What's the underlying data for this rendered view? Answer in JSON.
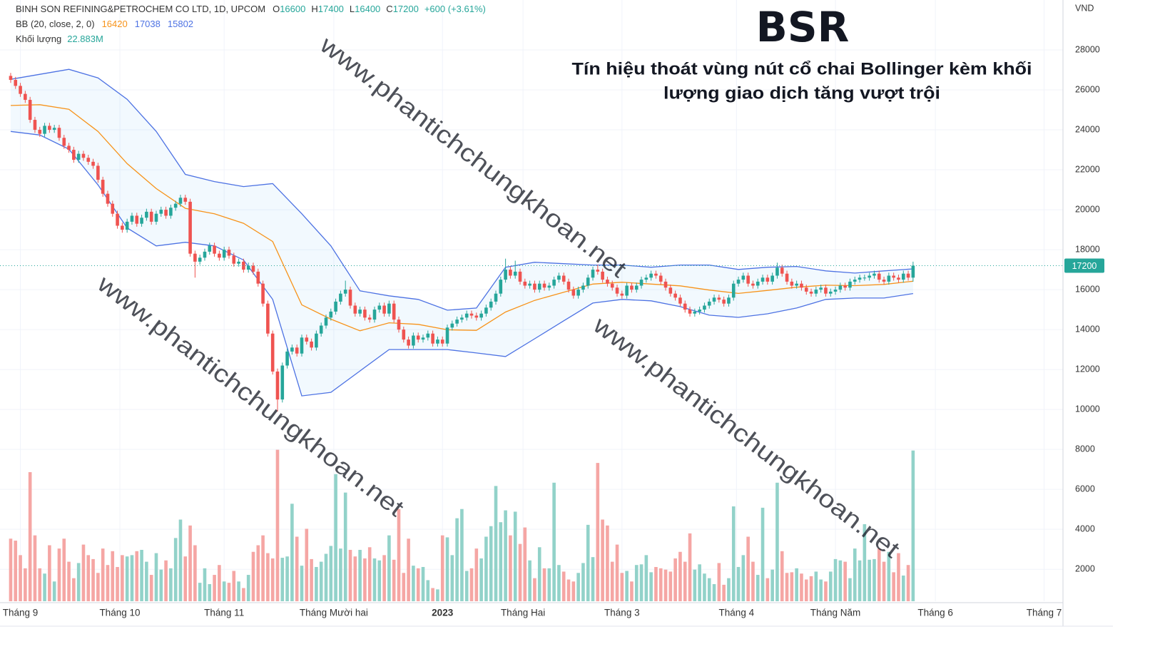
{
  "chart_data": {
    "type": "candlestick",
    "legend": {
      "symbol": "BINH SON REFINING&PETROCHEM CO LTD, 1D, UPCOM",
      "ohlc_prefix": [
        "O",
        "H",
        "L",
        "C"
      ],
      "change": "+600 (+3.61%)",
      "bb_label": "BB (20, close, 2, 0)",
      "volume_label": "Khối lượng",
      "volume_readout": "22.883M"
    },
    "title": "BSR",
    "annotation": [
      "Tín hiệu thoát vùng nút cổ chai Bollinger kèm khối",
      "lượng giao dịch tăng vượt trội"
    ],
    "watermark": "www.phantichchungkhoan.net",
    "currency": "VND",
    "colors": {
      "up": "#26a69a",
      "down": "#ef5350",
      "volume_up": "#92d2c9",
      "volume_down": "#f5a6a4",
      "title": "#66c34a",
      "annotation": "#e8302a",
      "watermark": "#ef8f8a"
    },
    "grid": true,
    "xlim": [
      -2.2,
      216.9
    ],
    "xticks": [
      {
        "value": 2,
        "label": "Tháng 9"
      },
      {
        "value": 22.5,
        "label": "Tháng 10"
      },
      {
        "value": 44,
        "label": "Tháng 11"
      },
      {
        "value": 66.6,
        "label": "Tháng Mười hai"
      },
      {
        "value": 89,
        "label": "2023",
        "bold": true
      },
      {
        "value": 105.6,
        "label": "Tháng Hai"
      },
      {
        "value": 126,
        "label": "Tháng 3"
      },
      {
        "value": 149.6,
        "label": "Tháng 4"
      },
      {
        "value": 170,
        "label": "Tháng Năm"
      },
      {
        "value": 190.6,
        "label": "Tháng 6"
      },
      {
        "value": 213,
        "label": "Tháng 7"
      }
    ],
    "ylim": [
      400,
      30500
    ],
    "yticks": [
      2000,
      4000,
      6000,
      8000,
      10000,
      12000,
      14000,
      16000,
      18000,
      20000,
      22000,
      24000,
      26000,
      28000
    ],
    "y2lim": [
      0,
      23.5
    ],
    "open": [
      26700,
      26500,
      26200,
      25800,
      25500,
      24500,
      24000,
      23800,
      24200,
      24000,
      24100,
      23600,
      23200,
      23000,
      22500,
      22800,
      22600,
      22400,
      22200,
      21500,
      20800,
      20300,
      19800,
      19200,
      19000,
      19400,
      19700,
      19300,
      19600,
      19900,
      19400,
      19800,
      20000,
      19700,
      20100,
      20300,
      20600,
      20400,
      17800,
      17400,
      17600,
      17900,
      18200,
      17800,
      17600,
      18000,
      17700,
      17300,
      17400,
      17000,
      17200,
      16900,
      16300,
      15300,
      13800,
      11900,
      10500,
      12200,
      12900,
      13100,
      12800,
      13600,
      13400,
      13100,
      13800,
      14200,
      14600,
      14900,
      15400,
      15800,
      16000,
      15200,
      14800,
      15000,
      14600,
      14500,
      15000,
      15200,
      14800,
      15300,
      14500,
      14000,
      13500,
      13200,
      13700,
      13500,
      13600,
      13800,
      13300,
      13500,
      13300,
      14100,
      14300,
      14500,
      14600,
      14800,
      14700,
      14600,
      14800,
      15100,
      15400,
      15800,
      16500,
      17000,
      16700,
      16900,
      16400,
      16200,
      16300,
      16000,
      16300,
      16100,
      16200,
      16500,
      16700,
      16400,
      16000,
      15700,
      16000,
      16200,
      16600,
      17000,
      16900,
      16500,
      16300,
      16100,
      15800,
      15700,
      16200,
      16000,
      16200,
      16500,
      16600,
      16800,
      16700,
      16400,
      16100,
      15800,
      15600,
      15300,
      15000,
      14800,
      14900,
      15000,
      15200,
      15400,
      15600,
      15500,
      15300,
      15600,
      16300,
      16500,
      16700,
      16300,
      16200,
      16400,
      16600,
      16400,
      16700,
      17100,
      16800,
      16400,
      16200,
      16300,
      16100,
      15900,
      15800,
      16000,
      16100,
      15800,
      15900,
      16000,
      16200,
      16100,
      16400,
      16500,
      16600,
      16600,
      16700,
      16800,
      16500,
      16400,
      16700,
      16600,
      16500,
      16800,
      16600
    ],
    "high": [
      26850,
      26650,
      26350,
      25950,
      25650,
      24650,
      24150,
      24350,
      24350,
      24250,
      24250,
      23750,
      23350,
      23150,
      22950,
      22950,
      22750,
      22550,
      22350,
      21650,
      20950,
      20450,
      19950,
      19350,
      19550,
      19850,
      19850,
      19750,
      20050,
      20050,
      19950,
      20150,
      20150,
      20250,
      20450,
      20750,
      20750,
      20550,
      17950,
      17750,
      18050,
      18350,
      18350,
      17950,
      18150,
      18150,
      17850,
      17550,
      17550,
      17350,
      17350,
      17050,
      16450,
      15450,
      13950,
      12050,
      12350,
      13050,
      13250,
      13250,
      13750,
      13750,
      13550,
      13950,
      14350,
      14750,
      15050,
      15550,
      15950,
      16450,
      16150,
      15350,
      15150,
      15150,
      14750,
      15150,
      15350,
      15350,
      15450,
      15450,
      14650,
      14150,
      13650,
      13850,
      13850,
      13750,
      13950,
      13950,
      13650,
      13650,
      14250,
      14450,
      14650,
      14750,
      14950,
      14950,
      14850,
      14950,
      15250,
      15550,
      15950,
      16650,
      17550,
      17150,
      17450,
      17050,
      16550,
      16450,
      16450,
      16450,
      16450,
      16350,
      16650,
      16850,
      16850,
      16550,
      16150,
      16150,
      16350,
      16750,
      17150,
      17250,
      17050,
      16650,
      16450,
      16250,
      15950,
      16350,
      16350,
      16350,
      16650,
      16750,
      16950,
      16950,
      16850,
      16550,
      16250,
      15950,
      15750,
      15450,
      15150,
      15050,
      15150,
      15350,
      15550,
      15750,
      15750,
      15650,
      15750,
      16450,
      16650,
      16850,
      16850,
      16450,
      16550,
      16750,
      16750,
      16850,
      17350,
      17250,
      16950,
      16550,
      16450,
      16450,
      16250,
      16050,
      16150,
      16250,
      16250,
      16050,
      16150,
      16350,
      16350,
      16550,
      16650,
      16750,
      16750,
      16850,
      16950,
      16950,
      16650,
      16850,
      16850,
      16750,
      16950,
      16950,
      17400
    ],
    "low": [
      26350,
      26050,
      25650,
      25350,
      24350,
      23850,
      23650,
      23650,
      23850,
      23850,
      23450,
      23050,
      22850,
      22350,
      22350,
      22450,
      22250,
      22050,
      21350,
      20650,
      20150,
      19650,
      19050,
      18850,
      18850,
      19250,
      19150,
      19150,
      19450,
      19250,
      19250,
      19650,
      19550,
      19550,
      19950,
      20150,
      20250,
      17650,
      16600,
      17250,
      17450,
      17750,
      17650,
      17450,
      17450,
      17550,
      17150,
      17150,
      16850,
      16850,
      16750,
      16150,
      15150,
      13650,
      11750,
      9900,
      10350,
      12050,
      12750,
      12650,
      12650,
      13250,
      12950,
      12950,
      13650,
      14050,
      14450,
      14750,
      15250,
      15650,
      15050,
      14650,
      14650,
      14450,
      14350,
      14350,
      14850,
      14650,
      14650,
      14350,
      13850,
      13350,
      13050,
      13050,
      13350,
      13350,
      13450,
      13150,
      13150,
      13150,
      13150,
      13950,
      14150,
      14350,
      14450,
      14550,
      14450,
      14450,
      14650,
      14950,
      15250,
      15650,
      16350,
      16550,
      16550,
      16250,
      16050,
      16050,
      15850,
      15850,
      15950,
      15950,
      16050,
      16350,
      16250,
      15850,
      15550,
      15550,
      15850,
      16050,
      16450,
      16750,
      16350,
      16150,
      15950,
      15650,
      15550,
      15550,
      15850,
      15850,
      16050,
      16350,
      16450,
      16550,
      16250,
      15950,
      15650,
      15450,
      15150,
      14850,
      14650,
      14650,
      14750,
      14850,
      15050,
      15250,
      15350,
      15150,
      15150,
      15450,
      16150,
      16350,
      16150,
      16050,
      16050,
      16250,
      16250,
      16250,
      16550,
      16650,
      16250,
      16050,
      16050,
      15950,
      15750,
      15650,
      15650,
      15850,
      15650,
      15650,
      15750,
      15850,
      15950,
      15950,
      16250,
      16350,
      16450,
      16450,
      16550,
      16350,
      16250,
      16250,
      16450,
      16350,
      16350,
      16450,
      16400
    ],
    "close": [
      26500,
      26200,
      25800,
      25500,
      24500,
      24000,
      23800,
      24200,
      24000,
      24100,
      23600,
      23200,
      23000,
      22500,
      22800,
      22600,
      22400,
      22200,
      21500,
      20800,
      20300,
      19800,
      19200,
      19000,
      19400,
      19700,
      19300,
      19600,
      19900,
      19400,
      19800,
      20000,
      19700,
      20100,
      20300,
      20600,
      20400,
      17800,
      17400,
      17600,
      17900,
      18200,
      17800,
      17600,
      18000,
      17700,
      17300,
      17400,
      17000,
      17200,
      16900,
      16300,
      15300,
      13800,
      11900,
      10500,
      12200,
      12900,
      13100,
      12800,
      13600,
      13400,
      13100,
      13800,
      14200,
      14600,
      14900,
      15400,
      15800,
      16000,
      15200,
      14800,
      15000,
      14600,
      14500,
      15000,
      15200,
      14800,
      15300,
      14500,
      14000,
      13500,
      13200,
      13700,
      13500,
      13600,
      13800,
      13300,
      13500,
      13300,
      14100,
      14300,
      14500,
      14600,
      14800,
      14700,
      14600,
      14800,
      15100,
      15400,
      15800,
      16500,
      17000,
      16700,
      16900,
      16400,
      16200,
      16300,
      16000,
      16300,
      16100,
      16200,
      16500,
      16700,
      16400,
      16000,
      15700,
      16000,
      16200,
      16600,
      17000,
      16900,
      16500,
      16300,
      16100,
      15800,
      15700,
      16200,
      16000,
      16200,
      16500,
      16600,
      16800,
      16700,
      16400,
      16100,
      15800,
      15600,
      15300,
      15000,
      14800,
      14900,
      15000,
      15200,
      15400,
      15600,
      15500,
      15300,
      15600,
      16300,
      16500,
      16700,
      16300,
      16200,
      16400,
      16600,
      16400,
      16700,
      17100,
      16800,
      16400,
      16200,
      16300,
      16100,
      15900,
      15800,
      16000,
      16100,
      15800,
      15900,
      16000,
      16200,
      16100,
      16400,
      16500,
      16600,
      16600,
      16700,
      16800,
      16500,
      16400,
      16700,
      16600,
      16500,
      16800,
      16600,
      17200
    ],
    "volume": {
      "name": "Khối lượng",
      "axis": "y2",
      "values": [
        9.5,
        9.2,
        7.0,
        5.0,
        19.6,
        10.0,
        5.0,
        4.2,
        8.5,
        3.0,
        8.0,
        9.5,
        6.0,
        3.5,
        5.8,
        8.6,
        7.0,
        6.4,
        4.3,
        8.0,
        5.5,
        7.6,
        5.2,
        7.0,
        6.8,
        7.0,
        7.6,
        7.8,
        6.0,
        4.0,
        7.3,
        4.8,
        6.2,
        5.0,
        9.6,
        12.4,
        6.8,
        11.5,
        8.5,
        2.8,
        5.0,
        2.6,
        4.0,
        5.5,
        3.0,
        2.8,
        4.6,
        3.0,
        2.0,
        4.0,
        7.5,
        8.5,
        10.0,
        7.3,
        6.5,
        23.0,
        6.6,
        6.8,
        14.8,
        9.8,
        5.4,
        11.0,
        6.4,
        5.2,
        6.0,
        7.2,
        8.4,
        19.3,
        8.0,
        16.5,
        7.8,
        6.8,
        7.8,
        6.5,
        8.2,
        6.5,
        6.2,
        7.0,
        10.0,
        6.3,
        14.0,
        4.3,
        9.5,
        5.4,
        5.0,
        5.2,
        3.2,
        2.0,
        1.8,
        10.0,
        9.7,
        7.0,
        12.6,
        14.0,
        4.6,
        5.0,
        8.0,
        6.5,
        9.8,
        11.4,
        17.5,
        12.0,
        13.8,
        10.0,
        13.6,
        8.7,
        11.2,
        6.2,
        3.5,
        8.2,
        5.0,
        5.0,
        18.0,
        5.5,
        4.5,
        3.3,
        3.0,
        4.3,
        5.8,
        11.6,
        6.7,
        21.0,
        12.4,
        11.5,
        6.0,
        8.6,
        4.3,
        4.6,
        3.0,
        5.5,
        5.6,
        7.0,
        4.4,
        5.2,
        5.0,
        4.8,
        4.5,
        6.5,
        7.5,
        6.0,
        10.3,
        4.8,
        5.6,
        4.2,
        3.5,
        2.6,
        5.8,
        2.5,
        3.5,
        14.4,
        5.2,
        7.0,
        9.8,
        6.0,
        4.0,
        14.2,
        3.5,
        4.8,
        18.0,
        7.6,
        4.3,
        4.4,
        5.0,
        4.2,
        3.3,
        3.8,
        4.5,
        3.3,
        3.0,
        4.5,
        6.4,
        6.2,
        6.0,
        3.5,
        8.0,
        6.2,
        11.7,
        6.3,
        6.4,
        8.0,
        6.0,
        7.5,
        4.4,
        7.3,
        3.9,
        5.5,
        22.883
      ]
    },
    "bb": {
      "fill": "rgba(33,150,243,0.06)",
      "x": [
        0,
        6,
        12,
        18,
        24,
        30,
        36,
        42,
        48,
        54,
        60,
        66,
        72,
        78,
        84,
        90,
        96,
        102,
        108,
        114,
        120,
        126,
        132,
        138,
        144,
        150,
        156,
        162,
        168,
        174,
        180,
        186
      ],
      "basis": {
        "color": "#f7931a",
        "values": [
          25220,
          25260,
          25030,
          23920,
          22310,
          21060,
          20070,
          19800,
          19320,
          18410,
          15240,
          14520,
          13940,
          14340,
          14260,
          13990,
          13960,
          14880,
          15460,
          15870,
          16280,
          16370,
          16280,
          16190,
          15980,
          15810,
          15960,
          16120,
          16220,
          16200,
          16260,
          16420
        ]
      },
      "upper": {
        "color": "#4d72e3",
        "values": [
          26530,
          26780,
          27030,
          26600,
          25530,
          23920,
          21770,
          21410,
          21160,
          21310,
          19800,
          18190,
          15940,
          15690,
          15510,
          14970,
          15080,
          17120,
          17370,
          17300,
          17230,
          17230,
          17120,
          17230,
          17230,
          17010,
          17120,
          17160,
          16940,
          16830,
          16940,
          17038
        ]
      },
      "lower": {
        "color": "#4d72e3",
        "values": [
          23920,
          23740,
          23030,
          21240,
          19090,
          18190,
          18370,
          18190,
          17480,
          15510,
          10680,
          10860,
          11930,
          13000,
          13000,
          13000,
          12830,
          12650,
          13540,
          14440,
          15330,
          15510,
          15440,
          15150,
          14720,
          14610,
          14790,
          15080,
          15510,
          15580,
          15580,
          15802
        ]
      }
    }
  }
}
